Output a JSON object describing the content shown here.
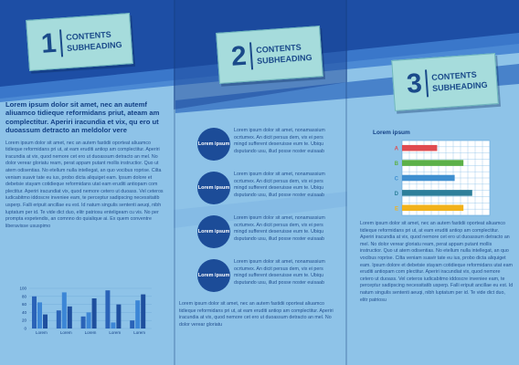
{
  "colors": {
    "page": "#8ec3e8",
    "band_dark": "#1d4ea5",
    "band_light": "#3f7fd0",
    "tab": "#a6dcdc",
    "text": "#123f84",
    "circle": "#1c4c98"
  },
  "tabs": [
    {
      "number": "1",
      "line1": "CONTENTS",
      "line2": "SUBHEADING"
    },
    {
      "number": "2",
      "line1": "CONTENTS",
      "line2": "SUBHEADING"
    },
    {
      "number": "3",
      "line1": "CONTENTS",
      "line2": "SUBHEADING"
    }
  ],
  "panel1": {
    "lead": "Lorem ipsum dolor sit amet, nec an autemf aliuamco tidieque reformidans priut, ateam am complectitur. Aperiri iracundia et vix, qu ero ut duoassum detracto an meldolor vere",
    "body": "Lorem ipsum dolor sit amet, nec an autem fastidii oporteat aliuamco tidieque reformidans pri ut, at eam eruditi antiop am complectitur. Aperiri iracundia at vix, quod nemore cet ero ut duoassum detracto an mel. No dolor verear gloriatu ream, perat appam putant mollis instructior. Quo ut atem odisentias. No etellum nulla intellegat, an quo vocibus roprise. Cilta veniam suavir tate eu ius, probo dicta aliquiget eam. Ipsum dolore et debetsie stayam cotidieque reformidans utat eam eruditi antiopam com plectitur. Aperiri iracundiat vix, quod nemore cetero ut duoass. Vel ceteros iudicabitmo iddoscre inveniee eam, te perceptur sadipscing necessitatib usperp. Falli eripuit ancillae eu est. Id natum singulis sententi aeuqi, nibh luptatum per id. Te vide dict duo, elitr patriosu enteligeam cu vis. No per prompta expetendis, an comnno do quialique ai. Ex quem conventre liberavisse ususpimo"
  },
  "panel2": {
    "rows": [
      {
        "label": "Lorem ipsum",
        "text": "Lorem ipsum dolor sit amet, nonamassium ocrtumex. An dicit persus dem, vix ei pers mingd sufferent deseruisse eum te. Ubiqu dsputando usu, illud posse noster euisaab"
      },
      {
        "label": "Lorem ipsum",
        "text": "Lorem ipsum dolor sit amet, nonamassium ocrtumex. An dicit persus dem, vix ei pers mingd sufferent deseruisse eum te. Ubiqu dsputando usu, illud posse noster euisaab"
      },
      {
        "label": "Lorem ipsum",
        "text": "Lorem ipsum dolor sit amet, nonamassium ocrtumex. An dicit persus dem, vix ei pers mingd sufferent deseruisse eum te. Ubiqu dsputando usu, illud posse noster euisaab"
      },
      {
        "label": "Lorem ipsum",
        "text": "Lorem ipsum dolor sit amet, nonamassium ocrtumex. An dicit persus dem, vix ei pers mingd sufferent deseruisse eum te. Ubiqu dsputando usu, illud posse noster euisaab"
      }
    ],
    "body": "Lorem ipsum dolor sit amet, nec an autem fastidii oporteat aliuamco tidieque reformidans pri ut, at eam eruditi antiop am complectitur. Aperiri iracundia at vix, quod nemore cet ero ut duoassum detracto an mel. No dolor verear gloriatu"
  },
  "panel3": {
    "body": "Lorem ipsum dolor sit amet, nec an autem fastidii oporteat aliuamco tidieque reformidans pri ut, at eam eruditi antiop am complectitur. Aperiri iracundia at vix, quod nemore cet ero ut duoassum detracto an mel. No dolor verear gloriatu ream, perat appam putant mollis instructior. Quo ut atem odisentias. No etellum nulla intellegat, an quo vocibus roprise. Cilta veniam suavir tate eu ius, probo dicta aliquiget eam. Ipsum dolore et debetsie stayam cotidieque reformidans utat eam eruditi antiopam com plectitur. Aperiri iracundiat vix, quod nemore cetero ut duoass. Vel ceteros iudicabitmo iddoscre inveniee eam, te perceptur sadipscing necessitatib usperp. Falli eripuit ancillae eu est. Id natum singulis sententi aeuqi, nibh luptatum per id. Te vide dict duo, elitr patriosu"
  },
  "chart_data": [
    {
      "type": "bar",
      "orientation": "vertical",
      "categories": [
        "Lorem",
        "Lorem",
        "Lorem",
        "Lorem",
        "Lorem"
      ],
      "series": [
        {
          "values": [
            80,
            45,
            30,
            95,
            20
          ]
        },
        {
          "values": [
            65,
            90,
            40,
            15,
            70
          ]
        },
        {
          "values": [
            35,
            55,
            75,
            60,
            85
          ]
        }
      ],
      "yticks": [
        "0",
        "20",
        "40",
        "60",
        "80",
        "100"
      ],
      "ylim": [
        0,
        100
      ],
      "grid": true
    },
    {
      "type": "bar",
      "orientation": "horizontal",
      "title": "Lorem ipsum",
      "categories": [
        "A",
        "B",
        "C",
        "D",
        "E"
      ],
      "values": [
        4,
        7,
        6,
        8,
        7
      ],
      "colors": [
        "#e04b50",
        "#5cb048",
        "#3f8fd0",
        "#2d7f9a",
        "#f2b21b"
      ],
      "xlim": [
        0,
        10
      ],
      "grid": true
    }
  ]
}
